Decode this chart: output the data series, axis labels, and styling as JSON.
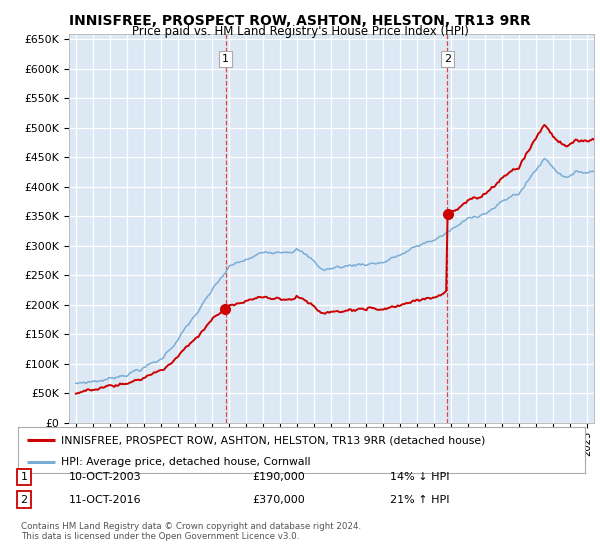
{
  "title": "INNISFREE, PROSPECT ROW, ASHTON, HELSTON, TR13 9RR",
  "subtitle": "Price paid vs. HM Land Registry's House Price Index (HPI)",
  "ytick_values": [
    0,
    50000,
    100000,
    150000,
    200000,
    250000,
    300000,
    350000,
    400000,
    450000,
    500000,
    550000,
    600000,
    650000
  ],
  "ylim": [
    0,
    660000
  ],
  "xlim_start": 1994.6,
  "xlim_end": 2025.4,
  "bg_color": "#dce9f5",
  "grid_color": "#ffffff",
  "red_line_color": "#cc0000",
  "blue_line_color": "#7aadd4",
  "sale1_x": 2003.79,
  "sale1_y": 190000,
  "sale2_x": 2016.79,
  "sale2_y": 370000,
  "legend_line1": "INNISFREE, PROSPECT ROW, ASHTON, HELSTON, TR13 9RR (detached house)",
  "legend_line2": "HPI: Average price, detached house, Cornwall",
  "annotation1_date": "10-OCT-2003",
  "annotation1_price": "£190,000",
  "annotation1_hpi": "14% ↓ HPI",
  "annotation2_date": "11-OCT-2016",
  "annotation2_price": "£370,000",
  "annotation2_hpi": "21% ↑ HPI",
  "footer": "Contains HM Land Registry data © Crown copyright and database right 2024.\nThis data is licensed under the Open Government Licence v3.0."
}
